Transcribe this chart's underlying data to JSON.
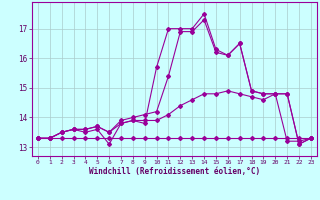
{
  "x": [
    0,
    1,
    2,
    3,
    4,
    5,
    6,
    7,
    8,
    9,
    10,
    11,
    12,
    13,
    14,
    15,
    16,
    17,
    18,
    19,
    20,
    21,
    22,
    23
  ],
  "line1": [
    13.3,
    13.3,
    13.3,
    13.3,
    13.3,
    13.3,
    13.3,
    13.3,
    13.3,
    13.3,
    13.3,
    13.3,
    13.3,
    13.3,
    13.3,
    13.3,
    13.3,
    13.3,
    13.3,
    13.3,
    13.3,
    13.3,
    13.3,
    13.3
  ],
  "line2": [
    13.3,
    13.3,
    13.5,
    13.6,
    13.6,
    13.7,
    13.5,
    13.8,
    13.9,
    13.9,
    13.9,
    14.1,
    14.4,
    14.6,
    14.8,
    14.8,
    14.9,
    14.8,
    14.7,
    14.6,
    14.8,
    13.2,
    13.2,
    13.3
  ],
  "line3": [
    13.3,
    13.3,
    13.5,
    13.6,
    13.6,
    13.7,
    13.5,
    13.9,
    14.0,
    14.1,
    14.2,
    15.4,
    16.9,
    16.9,
    17.3,
    16.2,
    16.1,
    16.5,
    14.9,
    14.8,
    14.8,
    14.8,
    13.1,
    13.3
  ],
  "line4": [
    13.3,
    13.3,
    13.5,
    13.6,
    13.5,
    13.6,
    13.1,
    13.8,
    13.9,
    13.8,
    15.7,
    17.0,
    17.0,
    17.0,
    17.5,
    16.3,
    16.1,
    16.5,
    14.9,
    14.8,
    14.8,
    14.8,
    13.1,
    13.3
  ],
  "line_color": "#990099",
  "bg_color": "#ccffff",
  "grid_color": "#aacccc",
  "xlabel": "Windchill (Refroidissement éolien,°C)",
  "xlabel_color": "#660066",
  "tick_color": "#660066",
  "xlim": [
    -0.5,
    23.5
  ],
  "ylim": [
    12.7,
    17.9
  ],
  "yticks": [
    13,
    14,
    15,
    16,
    17
  ],
  "xticks": [
    0,
    1,
    2,
    3,
    4,
    5,
    6,
    7,
    8,
    9,
    10,
    11,
    12,
    13,
    14,
    15,
    16,
    17,
    18,
    19,
    20,
    21,
    22,
    23
  ]
}
